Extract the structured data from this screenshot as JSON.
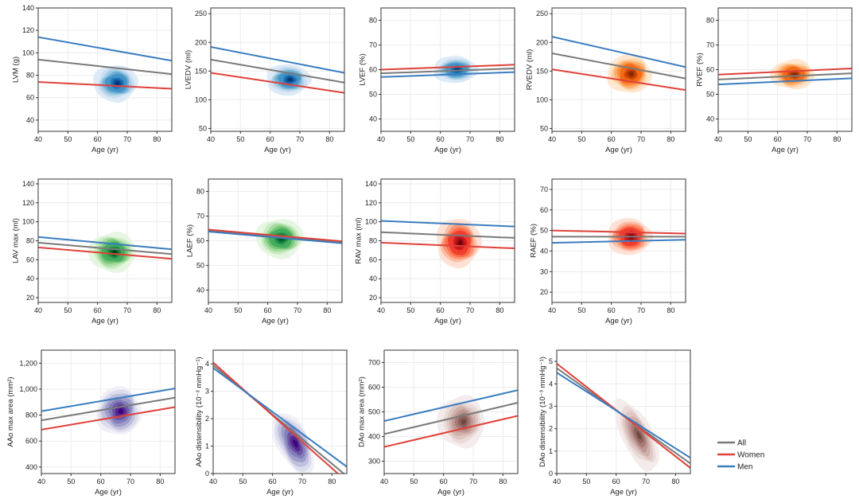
{
  "legend": [
    {
      "label": "All",
      "color": "#7a7a7a"
    },
    {
      "label": "Women",
      "color": "#e0413a"
    },
    {
      "label": "Men",
      "color": "#3a7dc0"
    }
  ],
  "chart_data": [
    {
      "type": "area",
      "id": "lvm",
      "title": "",
      "xlabel": "Age (yr)",
      "ylabel": "LVM (g)",
      "xlim": [
        40,
        85
      ],
      "ylim": [
        30,
        140
      ],
      "xticks": [
        40,
        50,
        60,
        70,
        80
      ],
      "yticks": [
        40,
        60,
        80,
        100,
        120,
        140
      ],
      "ytick_labels": [
        "40",
        "60",
        "80",
        "100",
        "120",
        "140"
      ],
      "palette": "blues",
      "density": {
        "center": [
          66,
          73
        ],
        "spread": [
          15,
          33
        ],
        "levels": 10
      },
      "series": [
        {
          "name": "All",
          "x": [
            40,
            85
          ],
          "y": [
            94,
            81
          ]
        },
        {
          "name": "Women",
          "x": [
            40,
            85
          ],
          "y": [
            74,
            68
          ]
        },
        {
          "name": "Men",
          "x": [
            40,
            85
          ],
          "y": [
            114,
            93
          ]
        }
      ]
    },
    {
      "type": "area",
      "id": "lvedv",
      "title": "",
      "xlabel": "Age (yr)",
      "ylabel": "LVEDV (ml)",
      "xlim": [
        40,
        85
      ],
      "ylim": [
        45,
        260
      ],
      "xticks": [
        40,
        50,
        60,
        70,
        80
      ],
      "yticks": [
        50,
        100,
        150,
        200,
        250
      ],
      "ytick_labels": [
        "50",
        "100",
        "150",
        "200",
        "250"
      ],
      "palette": "blues",
      "density": {
        "center": [
          66,
          135
        ],
        "spread": [
          15,
          55
        ],
        "levels": 10
      },
      "series": [
        {
          "name": "All",
          "x": [
            40,
            85
          ],
          "y": [
            170,
            130
          ]
        },
        {
          "name": "Women",
          "x": [
            40,
            85
          ],
          "y": [
            147,
            112
          ]
        },
        {
          "name": "Men",
          "x": [
            40,
            85
          ],
          "y": [
            192,
            147
          ]
        }
      ]
    },
    {
      "type": "area",
      "id": "lvef",
      "title": "",
      "xlabel": "Age (yr)",
      "ylabel": "LVEF (%)",
      "xlim": [
        40,
        85
      ],
      "ylim": [
        35,
        85
      ],
      "xticks": [
        40,
        50,
        60,
        70,
        80
      ],
      "yticks": [
        40,
        50,
        60,
        70,
        80
      ],
      "ytick_labels": [
        "40",
        "50",
        "60",
        "70",
        "80"
      ],
      "palette": "blues",
      "density": {
        "center": [
          65,
          60
        ],
        "spread": [
          15,
          11
        ],
        "levels": 10
      },
      "series": [
        {
          "name": "All",
          "x": [
            40,
            85
          ],
          "y": [
            58.5,
            60.5
          ]
        },
        {
          "name": "Women",
          "x": [
            40,
            85
          ],
          "y": [
            60,
            62
          ]
        },
        {
          "name": "Men",
          "x": [
            40,
            85
          ],
          "y": [
            57,
            59
          ]
        }
      ]
    },
    {
      "type": "area",
      "id": "rvedv",
      "title": "",
      "xlabel": "Age (yr)",
      "ylabel": "RVEDV (ml)",
      "xlim": [
        40,
        85
      ],
      "ylim": [
        45,
        260
      ],
      "xticks": [
        40,
        50,
        60,
        70,
        80
      ],
      "yticks": [
        50,
        100,
        150,
        200,
        250
      ],
      "ytick_labels": [
        "50",
        "100",
        "150",
        "200",
        "250"
      ],
      "palette": "oranges",
      "density": {
        "center": [
          66,
          145
        ],
        "spread": [
          15,
          68
        ],
        "levels": 10
      },
      "series": [
        {
          "name": "All",
          "x": [
            40,
            85
          ],
          "y": [
            181,
            137
          ]
        },
        {
          "name": "Women",
          "x": [
            40,
            85
          ],
          "y": [
            153,
            117
          ]
        },
        {
          "name": "Men",
          "x": [
            40,
            85
          ],
          "y": [
            210,
            157
          ]
        }
      ]
    },
    {
      "type": "area",
      "id": "rvef",
      "title": "",
      "xlabel": "Age (yr)",
      "ylabel": "RVEF (%)",
      "xlim": [
        40,
        85
      ],
      "ylim": [
        35,
        85
      ],
      "xticks": [
        40,
        50,
        60,
        70,
        80
      ],
      "yticks": [
        40,
        50,
        60,
        70,
        80
      ],
      "ytick_labels": [
        "40",
        "50",
        "60",
        "70",
        "80"
      ],
      "palette": "oranges",
      "density": {
        "center": [
          65,
          58
        ],
        "spread": [
          15,
          12
        ],
        "levels": 10
      },
      "series": [
        {
          "name": "All",
          "x": [
            40,
            85
          ],
          "y": [
            56,
            58.5
          ]
        },
        {
          "name": "Women",
          "x": [
            40,
            85
          ],
          "y": [
            58,
            60.5
          ]
        },
        {
          "name": "Men",
          "x": [
            40,
            85
          ],
          "y": [
            54,
            56.5
          ]
        }
      ]
    },
    {
      "type": "area",
      "id": "lavmax",
      "title": "",
      "xlabel": "Age (yr)",
      "ylabel": "LAV max (ml)",
      "xlim": [
        40,
        85
      ],
      "ylim": [
        15,
        145
      ],
      "xticks": [
        40,
        50,
        60,
        70,
        80
      ],
      "yticks": [
        20,
        40,
        60,
        80,
        100,
        120,
        140
      ],
      "ytick_labels": [
        "20",
        "40",
        "60",
        "80",
        "100",
        "120",
        "140"
      ],
      "palette": "greens",
      "density": {
        "center": [
          65,
          68
        ],
        "spread": [
          16,
          42
        ],
        "levels": 10
      },
      "series": [
        {
          "name": "All",
          "x": [
            40,
            85
          ],
          "y": [
            78,
            66
          ]
        },
        {
          "name": "Women",
          "x": [
            40,
            85
          ],
          "y": [
            73,
            61
          ]
        },
        {
          "name": "Men",
          "x": [
            40,
            85
          ],
          "y": [
            84,
            71
          ]
        }
      ]
    },
    {
      "type": "area",
      "id": "laef",
      "title": "",
      "xlabel": "Age (yr)",
      "ylabel": "LAEF (%)",
      "xlim": [
        40,
        85
      ],
      "ylim": [
        35,
        85
      ],
      "xticks": [
        40,
        50,
        60,
        70,
        80
      ],
      "yticks": [
        40,
        50,
        60,
        70,
        80
      ],
      "ytick_labels": [
        "40",
        "50",
        "60",
        "70",
        "80"
      ],
      "palette": "greens",
      "density": {
        "center": [
          64,
          61
        ],
        "spread": [
          16,
          16
        ],
        "levels": 10
      },
      "series": [
        {
          "name": "All",
          "x": [
            40,
            85
          ],
          "y": [
            64,
            59.3
          ]
        },
        {
          "name": "Women",
          "x": [
            40,
            85
          ],
          "y": [
            64.5,
            59.8
          ]
        },
        {
          "name": "Men",
          "x": [
            40,
            85
          ],
          "y": [
            63.7,
            59
          ]
        }
      ]
    },
    {
      "type": "area",
      "id": "ravmax",
      "title": "",
      "xlabel": "Age (yr)",
      "ylabel": "RAV max (ml)",
      "xlim": [
        40,
        85
      ],
      "ylim": [
        15,
        145
      ],
      "xticks": [
        40,
        50,
        60,
        70,
        80
      ],
      "yticks": [
        20,
        40,
        60,
        80,
        100,
        120,
        140
      ],
      "ytick_labels": [
        "20",
        "40",
        "60",
        "80",
        "100",
        "120",
        "140"
      ],
      "palette": "reds",
      "density": {
        "center": [
          66,
          78
        ],
        "spread": [
          15,
          52
        ],
        "levels": 10
      },
      "series": [
        {
          "name": "All",
          "x": [
            40,
            85
          ],
          "y": [
            89,
            83
          ]
        },
        {
          "name": "Women",
          "x": [
            40,
            85
          ],
          "y": [
            78,
            72
          ]
        },
        {
          "name": "Men",
          "x": [
            40,
            85
          ],
          "y": [
            101,
            95
          ]
        }
      ]
    },
    {
      "type": "area",
      "id": "raef",
      "title": "",
      "xlabel": "Age (yr)",
      "ylabel": "RAEF (%)",
      "xlim": [
        40,
        85
      ],
      "ylim": [
        15,
        75
      ],
      "xticks": [
        40,
        50,
        60,
        70,
        80
      ],
      "yticks": [
        20,
        30,
        40,
        50,
        60,
        70
      ],
      "ytick_labels": [
        "20",
        "30",
        "40",
        "50",
        "60",
        "70"
      ],
      "palette": "reds",
      "density": {
        "center": [
          66,
          47
        ],
        "spread": [
          15,
          18
        ],
        "levels": 10
      },
      "series": [
        {
          "name": "All",
          "x": [
            40,
            85
          ],
          "y": [
            47,
            47
          ]
        },
        {
          "name": "Women",
          "x": [
            40,
            85
          ],
          "y": [
            50,
            48.5
          ]
        },
        {
          "name": "Men",
          "x": [
            40,
            85
          ],
          "y": [
            44,
            45.5
          ]
        }
      ]
    },
    {
      "type": "area",
      "id": "aaomax",
      "title": "",
      "xlabel": "Age (yr)",
      "ylabel": "AAo max area (mm²)",
      "xlim": [
        40,
        85
      ],
      "ylim": [
        350,
        1300
      ],
      "xticks": [
        40,
        50,
        60,
        70,
        80
      ],
      "yticks": [
        400,
        600,
        800,
        1000,
        1200
      ],
      "ytick_labels": [
        "400",
        "600",
        "800",
        "1,000",
        "1,200"
      ],
      "palette": "purples",
      "density": {
        "center": [
          66,
          830
        ],
        "spread": [
          15,
          370
        ],
        "levels": 8
      },
      "series": [
        {
          "name": "All",
          "x": [
            40,
            85
          ],
          "y": [
            760,
            935
          ]
        },
        {
          "name": "Women",
          "x": [
            40,
            85
          ],
          "y": [
            688,
            862
          ]
        },
        {
          "name": "Men",
          "x": [
            40,
            85
          ],
          "y": [
            830,
            1005
          ]
        }
      ]
    },
    {
      "type": "area",
      "id": "aaodist",
      "title": "",
      "xlabel": "Age (yr)",
      "ylabel": "AAo distensibility (10⁻³ mmHg⁻¹)",
      "xlim": [
        40,
        85
      ],
      "ylim": [
        0,
        4.5
      ],
      "xticks": [
        40,
        50,
        60,
        70,
        80
      ],
      "yticks": [
        0,
        1,
        2,
        3,
        4
      ],
      "ytick_labels": [
        "0",
        "1",
        "2",
        "3",
        "4"
      ],
      "palette": "purples",
      "density": {
        "center": [
          67,
          1.1
        ],
        "spread": [
          14,
          1.9
        ],
        "levels": 8,
        "skew": -0.08
      },
      "series": [
        {
          "name": "All",
          "x": [
            40,
            84
          ],
          "y": [
            3.95,
            0
          ]
        },
        {
          "name": "Women",
          "x": [
            40,
            82
          ],
          "y": [
            4.05,
            0
          ]
        },
        {
          "name": "Men",
          "x": [
            40,
            85
          ],
          "y": [
            3.85,
            0.25
          ]
        }
      ]
    },
    {
      "type": "area",
      "id": "daomax",
      "title": "",
      "xlabel": "Age (yr)",
      "ylabel": "DAo max area (mm²)",
      "xlim": [
        40,
        85
      ],
      "ylim": [
        250,
        750
      ],
      "xticks": [
        40,
        50,
        60,
        70,
        80
      ],
      "yticks": [
        300,
        400,
        500,
        600,
        700
      ],
      "ytick_labels": [
        "300",
        "400",
        "500",
        "600",
        "700"
      ],
      "palette": "browns",
      "density": {
        "center": [
          66,
          460
        ],
        "spread": [
          16,
          210
        ],
        "levels": 9
      },
      "series": [
        {
          "name": "All",
          "x": [
            40,
            85
          ],
          "y": [
            410,
            537
          ]
        },
        {
          "name": "Women",
          "x": [
            40,
            85
          ],
          "y": [
            358,
            484
          ]
        },
        {
          "name": "Men",
          "x": [
            40,
            85
          ],
          "y": [
            463,
            588
          ]
        }
      ]
    },
    {
      "type": "area",
      "id": "daodist",
      "title": "",
      "xlabel": "Age (yr)",
      "ylabel": "DAo distensibility (10⁻³ mmHg⁻¹)",
      "xlim": [
        40,
        85
      ],
      "ylim": [
        0,
        5.5
      ],
      "xticks": [
        40,
        50,
        60,
        70,
        80
      ],
      "yticks": [
        0,
        1,
        2,
        3,
        4,
        5
      ],
      "ytick_labels": [
        "0",
        "1",
        "2",
        "3",
        "4",
        "5"
      ],
      "palette": "browns",
      "density": {
        "center": [
          67,
          1.7
        ],
        "spread": [
          15,
          2.4
        ],
        "levels": 9,
        "skew": -0.1
      },
      "series": [
        {
          "name": "All",
          "x": [
            40,
            85
          ],
          "y": [
            4.7,
            0.45
          ]
        },
        {
          "name": "Women",
          "x": [
            40,
            85
          ],
          "y": [
            4.9,
            0.25
          ]
        },
        {
          "name": "Men",
          "x": [
            40,
            85
          ],
          "y": [
            4.5,
            0.7
          ]
        }
      ]
    }
  ]
}
